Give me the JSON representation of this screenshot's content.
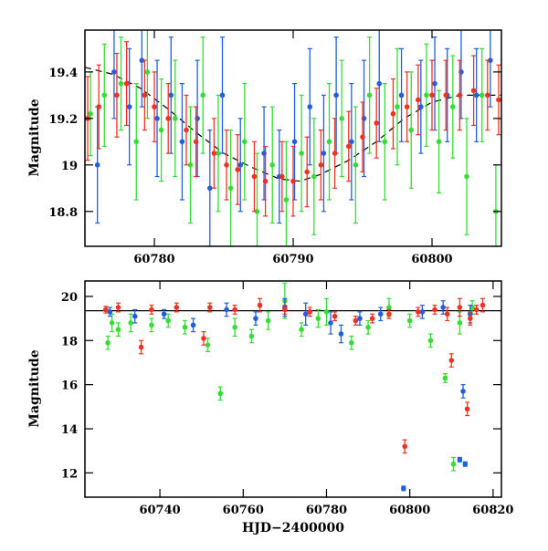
{
  "chart_data": [
    {
      "type": "scatter",
      "panel": "top",
      "xlabel": "",
      "ylabel": "Magnitude",
      "xlim": [
        60775,
        60805
      ],
      "ylim": [
        19.58,
        18.65
      ],
      "y_inverted": true,
      "x_ticks": [
        60780,
        60790,
        60800
      ],
      "y_ticks": [
        18.8,
        19,
        19.2,
        19.4
      ],
      "x_tick_labels": [
        "60780",
        "60790",
        "60800"
      ],
      "y_tick_labels": [
        "18.8",
        "19",
        "19.2",
        "19.4"
      ],
      "model_curve": {
        "color": "#000000",
        "x": [
          60775,
          60777,
          60779,
          60781,
          60783,
          60785,
          60787,
          60789,
          60790.5,
          60792,
          60794,
          60796,
          60798,
          60800,
          60802,
          60805
        ],
        "y": [
          19.42,
          19.39,
          19.33,
          19.24,
          19.14,
          19.05,
          18.99,
          18.94,
          18.93,
          18.96,
          19.02,
          19.1,
          19.2,
          19.27,
          19.3,
          19.3
        ]
      },
      "series": [
        {
          "color": "#33dd33",
          "points": [
            [
              60775.4,
              19.22,
              0.18
            ],
            [
              60776.4,
              19.3,
              0.22
            ],
            [
              60777.6,
              19.35,
              0.2
            ],
            [
              60778.7,
              19.1,
              0.25
            ],
            [
              60779.5,
              19.4,
              0.2
            ],
            [
              60780.5,
              19.15,
              0.22
            ],
            [
              60781.5,
              19.2,
              0.25
            ],
            [
              60782.6,
              19.0,
              0.25
            ],
            [
              60783.5,
              19.3,
              0.25
            ],
            [
              60784.6,
              19.05,
              0.25
            ],
            [
              60785.5,
              18.9,
              0.25
            ],
            [
              60786.5,
              19.1,
              0.25
            ],
            [
              60787.4,
              18.8,
              0.25
            ],
            [
              60788.5,
              19.0,
              0.25
            ],
            [
              60789.5,
              18.85,
              0.25
            ],
            [
              60790.6,
              19.05,
              0.25
            ],
            [
              60791.5,
              18.95,
              0.25
            ],
            [
              60792.6,
              19.1,
              0.25
            ],
            [
              60793.5,
              19.2,
              0.25
            ],
            [
              60794.5,
              19.0,
              0.25
            ],
            [
              60795.5,
              19.3,
              0.25
            ],
            [
              60796.6,
              19.1,
              0.25
            ],
            [
              60797.5,
              19.25,
              0.25
            ],
            [
              60798.5,
              19.15,
              0.25
            ],
            [
              60799.6,
              19.3,
              0.22
            ],
            [
              60800.5,
              19.1,
              0.22
            ],
            [
              60801.5,
              19.25,
              0.22
            ],
            [
              60802.5,
              18.95,
              0.25
            ],
            [
              60803.6,
              19.3,
              0.2
            ],
            [
              60804.6,
              18.8,
              0.2
            ]
          ]
        },
        {
          "color": "#1f5fe0",
          "points": [
            [
              60775.9,
              19.0,
              0.25
            ],
            [
              60777.1,
              19.4,
              0.2
            ],
            [
              60778.2,
              19.25,
              0.25
            ],
            [
              60779.1,
              19.45,
              0.2
            ],
            [
              60780.2,
              19.2,
              0.25
            ],
            [
              60781.2,
              19.3,
              0.25
            ],
            [
              60782.0,
              19.1,
              0.25
            ],
            [
              60783.1,
              19.2,
              0.25
            ],
            [
              60784.0,
              18.9,
              0.25
            ],
            [
              60784.9,
              19.3,
              0.25
            ],
            [
              60786.2,
              19.0,
              0.2
            ],
            [
              60787.9,
              19.05,
              0.2
            ],
            [
              60789.0,
              18.95,
              0.2
            ],
            [
              60790.1,
              19.1,
              0.25
            ],
            [
              60791.2,
              19.25,
              0.25
            ],
            [
              60792.2,
              19.05,
              0.25
            ],
            [
              60793.1,
              19.3,
              0.25
            ],
            [
              60794.2,
              19.1,
              0.25
            ],
            [
              60795.1,
              19.2,
              0.25
            ],
            [
              60796.2,
              19.35,
              0.25
            ],
            [
              60797.8,
              19.3,
              0.2
            ],
            [
              60799.2,
              19.25,
              0.2
            ],
            [
              60800.2,
              19.35,
              0.2
            ],
            [
              60801.1,
              19.3,
              0.2
            ],
            [
              60802.1,
              19.4,
              0.2
            ],
            [
              60803.2,
              19.3,
              0.2
            ],
            [
              60804.2,
              19.45,
              0.2
            ]
          ]
        },
        {
          "color": "#ee3322",
          "points": [
            [
              60775.2,
              19.2,
              0.18
            ],
            [
              60776.0,
              19.25,
              0.18
            ],
            [
              60777.3,
              19.3,
              0.18
            ],
            [
              60778.0,
              19.35,
              0.18
            ],
            [
              60779.3,
              19.3,
              0.15
            ],
            [
              60780.0,
              19.25,
              0.15
            ],
            [
              60781.0,
              19.2,
              0.15
            ],
            [
              60782.3,
              19.15,
              0.15
            ],
            [
              60783.0,
              19.1,
              0.15
            ],
            [
              60784.3,
              19.05,
              0.15
            ],
            [
              60785.2,
              19.0,
              0.15
            ],
            [
              60786.0,
              18.98,
              0.15
            ],
            [
              60787.2,
              18.95,
              0.15
            ],
            [
              60788.0,
              18.93,
              0.15
            ],
            [
              60789.2,
              18.95,
              0.15
            ],
            [
              60790.0,
              18.93,
              0.15
            ],
            [
              60791.0,
              18.97,
              0.15
            ],
            [
              60792.0,
              19.0,
              0.15
            ],
            [
              60793.0,
              19.05,
              0.15
            ],
            [
              60794.0,
              19.08,
              0.15
            ],
            [
              60795.0,
              19.12,
              0.15
            ],
            [
              60796.0,
              19.18,
              0.15
            ],
            [
              60797.2,
              19.22,
              0.15
            ],
            [
              60798.2,
              19.25,
              0.15
            ],
            [
              60799.0,
              19.28,
              0.15
            ],
            [
              60800.0,
              19.3,
              0.15
            ],
            [
              60801.0,
              19.3,
              0.15
            ],
            [
              60802.0,
              19.3,
              0.15
            ],
            [
              60803.0,
              19.32,
              0.15
            ],
            [
              60804.0,
              19.3,
              0.15
            ],
            [
              60804.8,
              19.28,
              0.15
            ]
          ]
        }
      ]
    },
    {
      "type": "scatter",
      "panel": "bottom",
      "xlabel": "HJD−2400000",
      "ylabel": "Magnitude",
      "xlim": [
        60722,
        60822
      ],
      "ylim": [
        20.7,
        10.9
      ],
      "y_inverted": true,
      "x_ticks": [
        60740,
        60760,
        60780,
        60800,
        60820
      ],
      "y_ticks": [
        12,
        14,
        16,
        18,
        20
      ],
      "x_tick_labels": [
        "60740",
        "60760",
        "60780",
        "60800",
        "60820"
      ],
      "y_tick_labels": [
        "12",
        "14",
        "16",
        "18",
        "20"
      ],
      "reference_line": {
        "y": 19.35,
        "color": "#000000"
      },
      "series": [
        {
          "color": "#33dd33",
          "points": [
            [
              60727.5,
              17.9,
              0.3
            ],
            [
              60728.5,
              18.8,
              0.4
            ],
            [
              60730.0,
              18.5,
              0.3
            ],
            [
              60733.0,
              18.8,
              0.4
            ],
            [
              60738.0,
              18.7,
              0.3
            ],
            [
              60742.0,
              18.9,
              0.3
            ],
            [
              60746.0,
              18.6,
              0.3
            ],
            [
              60751.5,
              17.8,
              0.3
            ],
            [
              60754.5,
              15.6,
              0.3
            ],
            [
              60758.0,
              18.6,
              0.4
            ],
            [
              60762.0,
              18.2,
              0.3
            ],
            [
              60766.0,
              18.9,
              0.4
            ],
            [
              60770.0,
              19.8,
              0.8
            ],
            [
              60774.0,
              18.5,
              0.3
            ],
            [
              60778.0,
              19.0,
              0.4
            ],
            [
              60780.0,
              19.3,
              0.6
            ],
            [
              60786.0,
              17.9,
              0.3
            ],
            [
              60790.0,
              18.6,
              0.3
            ],
            [
              60795.0,
              19.5,
              0.4
            ],
            [
              60800.0,
              18.9,
              0.3
            ],
            [
              60805.0,
              18.0,
              0.3
            ],
            [
              60808.5,
              16.3,
              0.2
            ],
            [
              60810.5,
              12.4,
              0.3
            ],
            [
              60812.0,
              18.8,
              0.5
            ],
            [
              60815.0,
              19.5,
              0.3
            ]
          ]
        },
        {
          "color": "#1f5fe0",
          "points": [
            [
              60728.0,
              19.3,
              0.2
            ],
            [
              60734.0,
              19.1,
              0.3
            ],
            [
              60741.0,
              19.2,
              0.2
            ],
            [
              60748.0,
              18.7,
              0.3
            ],
            [
              60756.0,
              19.4,
              0.3
            ],
            [
              60763.0,
              19.0,
              0.3
            ],
            [
              60770.0,
              19.5,
              0.4
            ],
            [
              60775.0,
              19.2,
              0.5
            ],
            [
              60781.0,
              18.8,
              0.5
            ],
            [
              60783.5,
              18.3,
              0.4
            ],
            [
              60788.0,
              19.0,
              0.3
            ],
            [
              60793.0,
              19.2,
              0.3
            ],
            [
              60798.5,
              11.3,
              0.1
            ],
            [
              60803.0,
              19.3,
              0.3
            ],
            [
              60808.0,
              19.5,
              0.3
            ],
            [
              60812.0,
              12.6,
              0.1
            ],
            [
              60812.8,
              15.7,
              0.3
            ],
            [
              60813.3,
              12.4,
              0.1
            ],
            [
              60814.5,
              19.2,
              0.4
            ]
          ]
        },
        {
          "color": "#ee3322",
          "points": [
            [
              60727.0,
              19.4,
              0.15
            ],
            [
              60730.0,
              19.5,
              0.2
            ],
            [
              60735.5,
              17.7,
              0.3
            ],
            [
              60738.0,
              19.4,
              0.2
            ],
            [
              60744.0,
              19.5,
              0.2
            ],
            [
              60750.5,
              18.1,
              0.3
            ],
            [
              60752.0,
              19.5,
              0.2
            ],
            [
              60758.0,
              19.4,
              0.2
            ],
            [
              60764.0,
              19.6,
              0.3
            ],
            [
              60770.0,
              19.4,
              0.2
            ],
            [
              60776.0,
              19.3,
              0.2
            ],
            [
              60782.0,
              19.1,
              0.2
            ],
            [
              60787.0,
              18.9,
              0.2
            ],
            [
              60791.0,
              19.0,
              0.2
            ],
            [
              60795.0,
              19.2,
              0.2
            ],
            [
              60798.8,
              13.2,
              0.3
            ],
            [
              60802.0,
              19.3,
              0.2
            ],
            [
              60806.0,
              19.4,
              0.2
            ],
            [
              60809.0,
              19.2,
              0.3
            ],
            [
              60810.0,
              17.1,
              0.3
            ],
            [
              60812.0,
              19.5,
              0.4
            ],
            [
              60813.8,
              14.9,
              0.3
            ],
            [
              60814.5,
              19.0,
              0.3
            ],
            [
              60816.0,
              19.4,
              0.2
            ],
            [
              60817.5,
              19.6,
              0.3
            ]
          ]
        }
      ]
    }
  ]
}
